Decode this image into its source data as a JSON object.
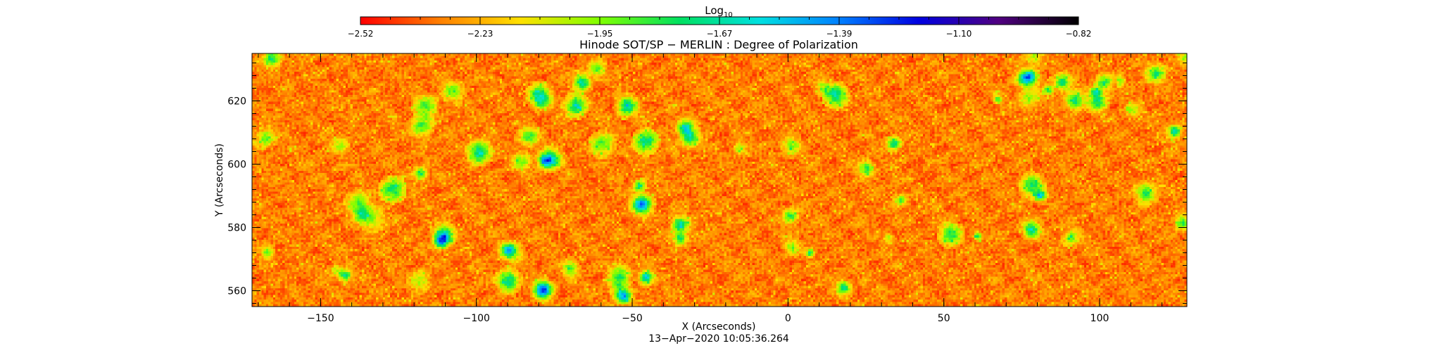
{
  "chart_data": {
    "type": "heatmap",
    "title": "Hinode SOT/SP − MERLIN : Degree of Polarization",
    "xlabel": "X (Arcseconds)",
    "ylabel": "Y (Arcseconds)",
    "timestamp": "13−Apr−2020 10:05:36.264",
    "xlim": [
      -172,
      128
    ],
    "ylim": [
      555,
      635
    ],
    "x_ticks": [
      {
        "value": -150,
        "label": "−150"
      },
      {
        "value": -100,
        "label": "−100"
      },
      {
        "value": -50,
        "label": "−50"
      },
      {
        "value": 0,
        "label": "0"
      },
      {
        "value": 50,
        "label": "50"
      },
      {
        "value": 100,
        "label": "100"
      }
    ],
    "y_ticks": [
      {
        "value": 560,
        "label": "560"
      },
      {
        "value": 580,
        "label": "580"
      },
      {
        "value": 600,
        "label": "600"
      },
      {
        "value": 620,
        "label": "620"
      }
    ],
    "colorbar": {
      "title_base": "Log",
      "title_sub": "10",
      "min": -2.52,
      "max": -0.82,
      "colormap": [
        "#ff0000",
        "#ff8000",
        "#ffe000",
        "#80ff00",
        "#00e060",
        "#00e0e0",
        "#0080ff",
        "#0000e0",
        "#500080",
        "#000000"
      ],
      "tick_labels": [
        "−2.52",
        "−2.23",
        "−1.95",
        "−1.67",
        "−1.39",
        "−1.10",
        "−0.82"
      ]
    }
  }
}
